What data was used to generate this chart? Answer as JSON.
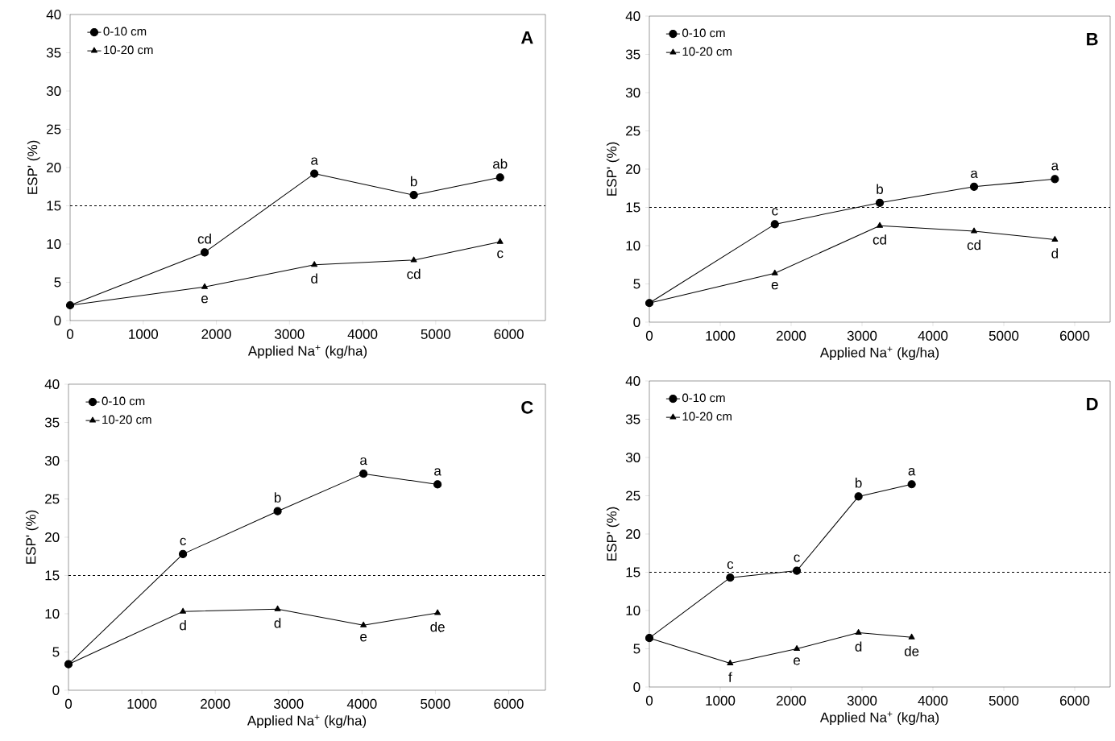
{
  "chart_data": [
    {
      "type": "line",
      "xlabel": "Applied Na$^{+}$ (kg/ha)",
      "ylabel": "ESP' (%)",
      "legend": "top left",
      "x": [
        0,
        1840,
        3340,
        4700,
        5880
      ],
      "series": [
        {
          "name": "0-10 cm",
          "color": "#000000",
          "marker": "circle",
          "values": [
            2.0,
            8.9,
            19.2,
            16.4,
            18.7
          ]
        },
        {
          "name": "10-20 cm",
          "color": "#000000",
          "marker": "triangle",
          "values": [
            2.0,
            4.4,
            7.3,
            7.9,
            10.3
          ]
        }
      ],
      "xlim": [
        0,
        6500
      ],
      "ylim": [
        0,
        40
      ],
      "xticks": [
        0,
        1000,
        2000,
        3000,
        4000,
        5000,
        6000
      ],
      "yticks": [
        0,
        5,
        10,
        15,
        20,
        25,
        30,
        35,
        40
      ],
      "ref_lines": [
        {
          "axis": "y",
          "value": 15,
          "line_style": "dashed"
        }
      ],
      "annotations": [
        "A",
        {
          "text": "cd",
          "x": 1840,
          "y": 8.9
        },
        {
          "text": "a",
          "x": 3340,
          "y": 19.2
        },
        {
          "text": "b",
          "x": 4700,
          "y": 16.4
        },
        {
          "text": "ab",
          "x": 5880,
          "y": 18.7
        },
        {
          "text": "e",
          "x": 1840,
          "y": 4.4
        },
        {
          "text": "d",
          "x": 3340,
          "y": 7.3
        },
        {
          "text": "cd",
          "x": 4700,
          "y": 7.9
        },
        {
          "text": "c",
          "x": 5880,
          "y": 10.3
        }
      ]
    },
    {
      "type": "line",
      "xlabel": "Applied Na$^{+}$ (kg/ha)",
      "ylabel": "ESP' (%)",
      "legend": "top left",
      "x": [
        0,
        1770,
        3250,
        4580,
        5720
      ],
      "series": [
        {
          "name": "0-10 cm",
          "color": "#000000",
          "marker": "circle",
          "values": [
            2.5,
            12.8,
            15.6,
            17.7,
            18.7
          ]
        },
        {
          "name": "10-20 cm",
          "color": "#000000",
          "marker": "triangle",
          "values": [
            2.5,
            6.4,
            12.6,
            11.9,
            10.8
          ]
        }
      ],
      "xlim": [
        0,
        6500
      ],
      "ylim": [
        0,
        40
      ],
      "xticks": [
        0,
        1000,
        2000,
        3000,
        4000,
        5000,
        6000
      ],
      "yticks": [
        0,
        5,
        10,
        15,
        20,
        25,
        30,
        35,
        40
      ],
      "ref_lines": [
        {
          "axis": "y",
          "value": 15,
          "line_style": "dashed"
        }
      ],
      "annotations": [
        "B",
        {
          "text": "c",
          "x": 1770,
          "y": 12.8
        },
        {
          "text": "b",
          "x": 3250,
          "y": 15.6
        },
        {
          "text": "a",
          "x": 4580,
          "y": 17.7
        },
        {
          "text": "a",
          "x": 5720,
          "y": 18.7
        },
        {
          "text": "e",
          "x": 1770,
          "y": 6.4
        },
        {
          "text": "cd",
          "x": 3250,
          "y": 12.6
        },
        {
          "text": "cd",
          "x": 4580,
          "y": 11.9
        },
        {
          "text": "d",
          "x": 5720,
          "y": 10.8
        }
      ]
    },
    {
      "type": "line",
      "xlabel": "Applied Na$^{+}$ (kg/ha)",
      "ylabel": "ESP' (%)",
      "legend": "top left",
      "x": [
        0,
        1560,
        2850,
        4020,
        5030
      ],
      "series": [
        {
          "name": "0-10 cm",
          "color": "#000000",
          "marker": "circle",
          "values": [
            3.4,
            17.8,
            23.4,
            28.3,
            26.9
          ]
        },
        {
          "name": "10-20 cm",
          "color": "#000000",
          "marker": "triangle",
          "values": [
            3.4,
            10.3,
            10.6,
            8.5,
            10.1
          ]
        }
      ],
      "xlim": [
        0,
        6500
      ],
      "ylim": [
        0,
        40
      ],
      "xticks": [
        0,
        1000,
        2000,
        3000,
        4000,
        5000,
        6000
      ],
      "yticks": [
        0,
        5,
        10,
        15,
        20,
        25,
        30,
        35,
        40
      ],
      "ref_lines": [
        {
          "axis": "y",
          "value": 15,
          "line_style": "dashed"
        }
      ],
      "annotations": [
        "C",
        {
          "text": "c",
          "x": 1560,
          "y": 17.8
        },
        {
          "text": "b",
          "x": 2850,
          "y": 23.4
        },
        {
          "text": "a",
          "x": 4020,
          "y": 28.3
        },
        {
          "text": "a",
          "x": 5030,
          "y": 26.9
        },
        {
          "text": "d",
          "x": 1560,
          "y": 10.3
        },
        {
          "text": "d",
          "x": 2850,
          "y": 10.6
        },
        {
          "text": "e",
          "x": 4020,
          "y": 8.5
        },
        {
          "text": "de",
          "x": 5030,
          "y": 10.1
        }
      ]
    },
    {
      "type": "line",
      "xlabel": "Applied Na$^{+}$ (kg/ha)",
      "ylabel": "ESP' (%)",
      "legend": "top left",
      "x": [
        0,
        1140,
        2080,
        2950,
        3700
      ],
      "series": [
        {
          "name": "0-10 cm",
          "color": "#000000",
          "marker": "circle",
          "values": [
            6.4,
            14.3,
            15.2,
            24.9,
            26.5
          ]
        },
        {
          "name": "10-20 cm",
          "color": "#000000",
          "marker": "triangle",
          "values": [
            6.4,
            3.1,
            5.0,
            7.1,
            6.5
          ]
        }
      ],
      "xlim": [
        0,
        6500
      ],
      "ylim": [
        0,
        40
      ],
      "xticks": [
        0,
        1000,
        2000,
        3000,
        4000,
        5000,
        6000
      ],
      "yticks": [
        0,
        5,
        10,
        15,
        20,
        25,
        30,
        35,
        40
      ],
      "ref_lines": [
        {
          "axis": "y",
          "value": 15,
          "line_style": "dashed"
        }
      ],
      "annotations": [
        "D",
        {
          "text": "c",
          "x": 1140,
          "y": 14.3
        },
        {
          "text": "c",
          "x": 2080,
          "y": 15.2
        },
        {
          "text": "b",
          "x": 2950,
          "y": 24.9
        },
        {
          "text": "a",
          "x": 3700,
          "y": 26.5
        },
        {
          "text": "f",
          "x": 1140,
          "y": 3.1
        },
        {
          "text": "e",
          "x": 2080,
          "y": 5.0
        },
        {
          "text": "d",
          "x": 2950,
          "y": 7.1
        },
        {
          "text": "de",
          "x": 3700,
          "y": 6.5
        }
      ]
    }
  ]
}
